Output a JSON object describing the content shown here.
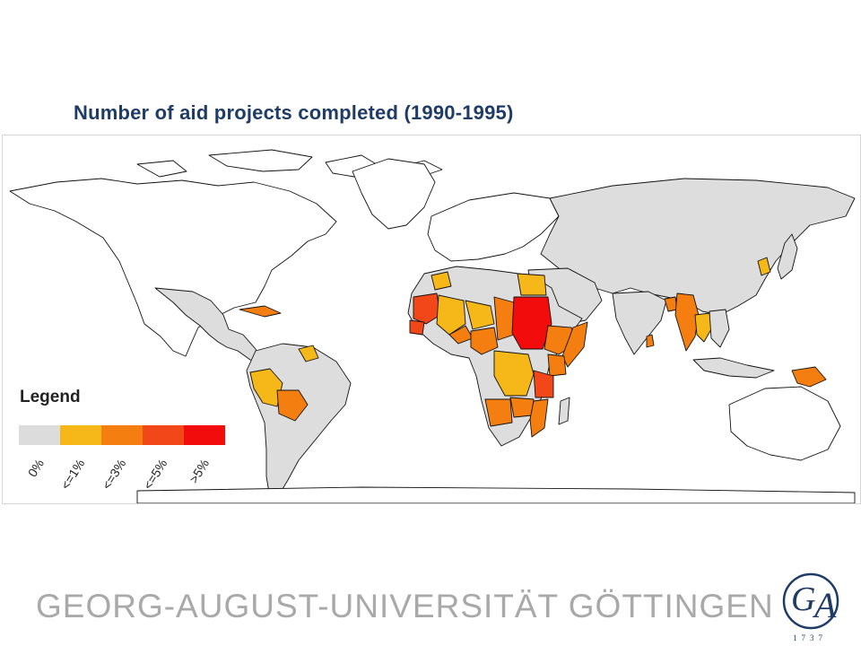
{
  "title": "Number of aid projects completed (1990-1995)",
  "map": {
    "land_fill": "#dddddd",
    "border_color": "#111111",
    "highlighted_regions": [
      {
        "region": "Sudan",
        "category": ">5%"
      },
      {
        "region": "Mauritania",
        "category": "<=5%"
      },
      {
        "region": "Senegal",
        "category": "<=5%"
      },
      {
        "region": "Tanzania",
        "category": "<=5%"
      },
      {
        "region": "Ethiopia",
        "category": "<=3%"
      },
      {
        "region": "Kenya",
        "category": "<=3%"
      },
      {
        "region": "Somalia",
        "category": "<=3%"
      },
      {
        "region": "Nigeria",
        "category": "<=3%"
      },
      {
        "region": "Burkina Faso",
        "category": "<=3%"
      },
      {
        "region": "Chad",
        "category": "<=3%"
      },
      {
        "region": "Mozambique",
        "category": "<=3%"
      },
      {
        "region": "Zambia",
        "category": "<=3%"
      },
      {
        "region": "Angola",
        "category": "<=3%"
      },
      {
        "region": "Bolivia",
        "category": "<=3%"
      },
      {
        "region": "Myanmar",
        "category": "<=3%"
      },
      {
        "region": "Bangladesh",
        "category": "<=3%"
      },
      {
        "region": "Papua New Guinea",
        "category": "<=3%"
      },
      {
        "region": "Sri Lanka",
        "category": "<=3%"
      },
      {
        "region": "Mali",
        "category": "<=1%"
      },
      {
        "region": "Niger",
        "category": "<=1%"
      },
      {
        "region": "Morocco",
        "category": "<=1%"
      },
      {
        "region": "DR Congo",
        "category": "<=1%"
      },
      {
        "region": "Peru",
        "category": "<=1%"
      },
      {
        "region": "Guyana",
        "category": "<=1%"
      },
      {
        "region": "Thailand",
        "category": "<=1%"
      },
      {
        "region": "Egypt",
        "category": "<=1%"
      },
      {
        "region": "Madagascar",
        "category": "0%"
      }
    ]
  },
  "legend": {
    "title": "Legend",
    "items": [
      {
        "label": "0%",
        "color": "#dcdcdc"
      },
      {
        "label": "<=1%",
        "color": "#f6b818"
      },
      {
        "label": "<=3%",
        "color": "#f47f10"
      },
      {
        "label": "<=5%",
        "color": "#f14719"
      },
      {
        "label": ">5%",
        "color": "#f30c0c"
      }
    ]
  },
  "footer": {
    "university": "GEORG-AUGUST-UNIVERSITÄT GÖTTINGEN",
    "seal_letters": "GA",
    "seal_year": "1737"
  }
}
